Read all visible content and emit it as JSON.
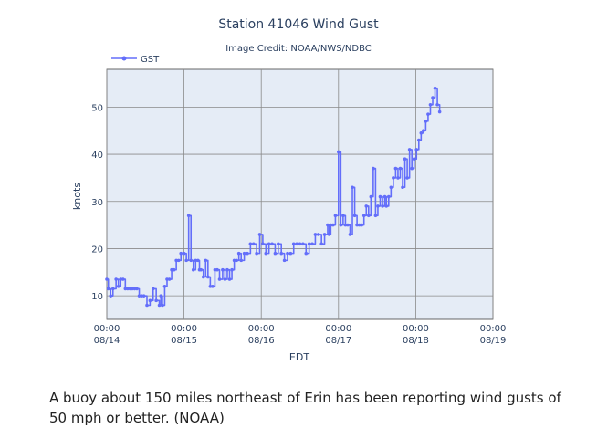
{
  "caption": "A buoy about 150 miles northeast of Erin has been reporting wind gusts of 50 mph or better. (NOAA)",
  "chart_data": {
    "type": "line",
    "title": "Station 41046 Wind Gust",
    "subtitle": "Image Credit: NOAA/NWS/NDBC",
    "xlabel": "EDT",
    "ylabel": "knots",
    "legend": {
      "placement": "top-left",
      "entries": [
        "GST"
      ]
    },
    "grid": true,
    "colors": {
      "series": "#636efa",
      "plot_bg": "#e5ecf6",
      "grid": "#8a8a8a"
    },
    "xlim": [
      0,
      5
    ],
    "ylim": [
      5,
      58
    ],
    "x_ticks": [
      {
        "value": 0,
        "label": "00:00",
        "sublabel": "08/14"
      },
      {
        "value": 1,
        "label": "00:00",
        "sublabel": "08/15"
      },
      {
        "value": 2,
        "label": "00:00",
        "sublabel": "08/16"
      },
      {
        "value": 3,
        "label": "00:00",
        "sublabel": "08/17"
      },
      {
        "value": 4,
        "label": "00:00",
        "sublabel": "08/18"
      },
      {
        "value": 5,
        "label": "00:00",
        "sublabel": "08/19"
      }
    ],
    "y_ticks": [
      10,
      20,
      30,
      40,
      50
    ],
    "series": [
      {
        "name": "GST",
        "x": [
          0.0,
          0.02,
          0.05,
          0.08,
          0.12,
          0.15,
          0.18,
          0.21,
          0.24,
          0.27,
          0.3,
          0.33,
          0.36,
          0.39,
          0.42,
          0.45,
          0.48,
          0.52,
          0.56,
          0.6,
          0.64,
          0.68,
          0.7,
          0.72,
          0.75,
          0.78,
          0.81,
          0.84,
          0.87,
          0.9,
          0.93,
          0.96,
          1.0,
          1.03,
          1.06,
          1.09,
          1.12,
          1.15,
          1.18,
          1.2,
          1.22,
          1.25,
          1.28,
          1.31,
          1.34,
          1.37,
          1.4,
          1.43,
          1.46,
          1.5,
          1.53,
          1.56,
          1.59,
          1.62,
          1.65,
          1.68,
          1.71,
          1.74,
          1.78,
          1.82,
          1.86,
          1.9,
          1.94,
          1.98,
          2.02,
          2.06,
          2.1,
          2.14,
          2.18,
          2.22,
          2.26,
          2.3,
          2.34,
          2.38,
          2.42,
          2.46,
          2.5,
          2.54,
          2.58,
          2.62,
          2.66,
          2.7,
          2.74,
          2.78,
          2.82,
          2.86,
          2.88,
          2.9,
          2.93,
          2.96,
          3.0,
          3.03,
          3.06,
          3.09,
          3.12,
          3.15,
          3.18,
          3.21,
          3.24,
          3.27,
          3.3,
          3.33,
          3.36,
          3.39,
          3.42,
          3.45,
          3.48,
          3.51,
          3.54,
          3.57,
          3.6,
          3.62,
          3.65,
          3.68,
          3.71,
          3.74,
          3.77,
          3.8,
          3.83,
          3.86,
          3.89,
          3.92,
          3.95,
          3.98,
          4.01,
          4.04,
          4.07,
          4.1,
          4.13,
          4.16,
          4.19,
          4.22,
          4.25,
          4.28,
          4.31
        ],
        "values": [
          13.5,
          11.5,
          10,
          11.5,
          13.5,
          12,
          13.5,
          13.5,
          11.5,
          11.5,
          11.5,
          11.5,
          11.5,
          11.5,
          10,
          10,
          10,
          8,
          9,
          11.5,
          9,
          8,
          10,
          8,
          12,
          13.5,
          13.5,
          15.5,
          15.5,
          17.5,
          17.5,
          19,
          19,
          17.5,
          27,
          17.5,
          15.5,
          17.5,
          17.5,
          15.5,
          15.5,
          14,
          17.5,
          14,
          12,
          12,
          15.5,
          15.5,
          13.5,
          15.5,
          13.5,
          15.5,
          13.5,
          15.5,
          17.5,
          17.5,
          19,
          17.5,
          19,
          19,
          21,
          21,
          19,
          23,
          21,
          19,
          21,
          21,
          19,
          21,
          19,
          17.5,
          19,
          19,
          21,
          21,
          21,
          21,
          19,
          21,
          21,
          23,
          23,
          21,
          23,
          25,
          23,
          25,
          25,
          27,
          40.5,
          25,
          27,
          25,
          25,
          23,
          33,
          27,
          25,
          25,
          25,
          27,
          29,
          27,
          31,
          37,
          27,
          29,
          31,
          29,
          31,
          29,
          31,
          33,
          35,
          37,
          35,
          37,
          33,
          39,
          35,
          41,
          37,
          39,
          41,
          43,
          44.5,
          45,
          47,
          48.5,
          50.5,
          52,
          54,
          50.5,
          49
        ]
      }
    ]
  }
}
